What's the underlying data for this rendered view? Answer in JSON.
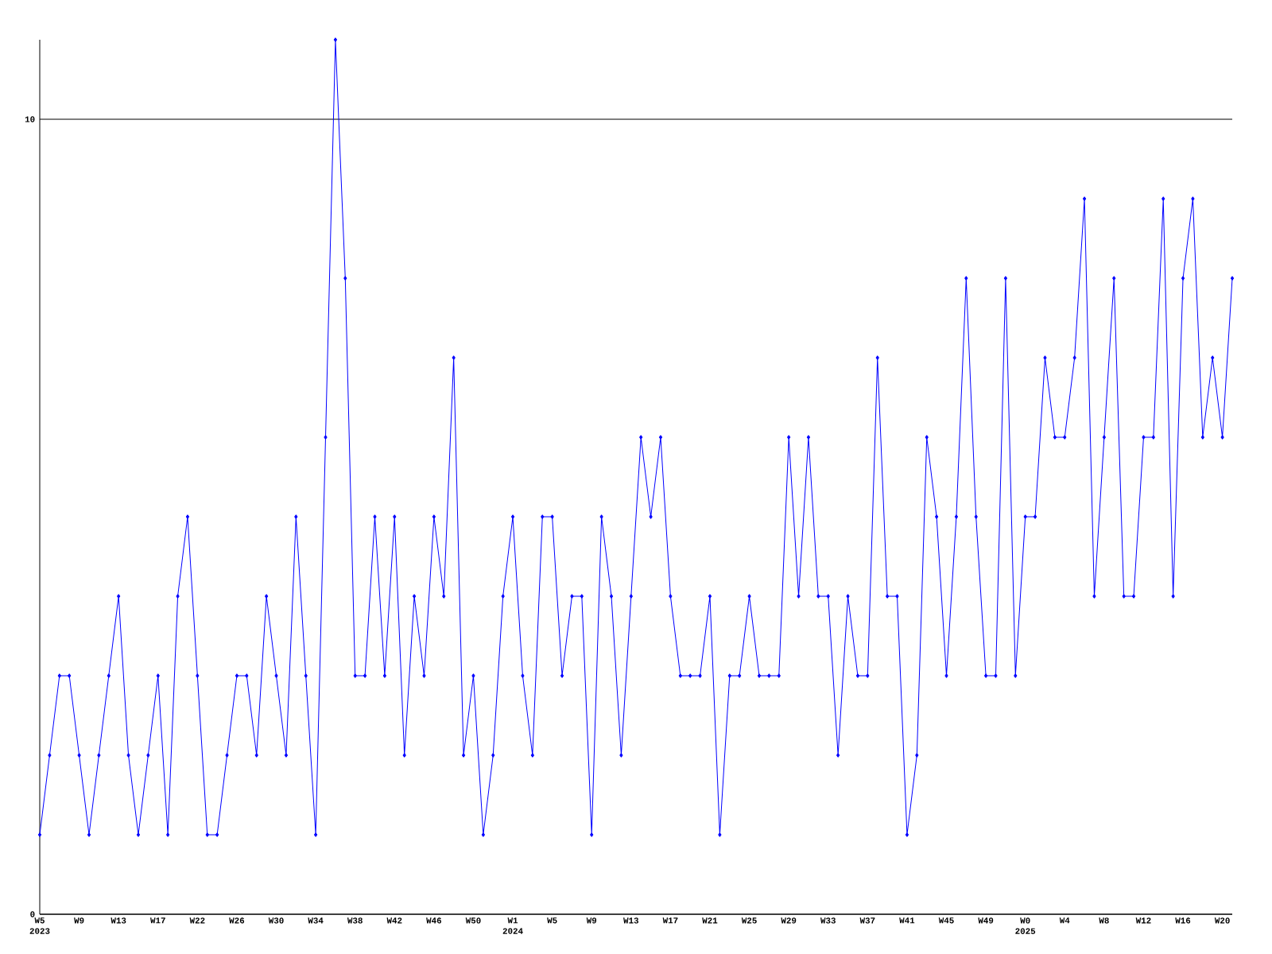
{
  "chart_data": {
    "type": "line",
    "categories": [
      "W5 2023",
      null,
      null,
      null,
      "W9",
      null,
      null,
      null,
      "W13",
      null,
      null,
      null,
      "W17",
      null,
      null,
      null,
      "W22",
      null,
      null,
      null,
      "W26",
      null,
      null,
      null,
      "W30",
      null,
      null,
      null,
      "W34",
      null,
      null,
      null,
      "W38",
      null,
      null,
      null,
      "W42",
      null,
      null,
      null,
      "W46",
      null,
      null,
      null,
      "W50",
      null,
      null,
      null,
      "W1 2024",
      null,
      null,
      null,
      "W5",
      null,
      null,
      null,
      "W9",
      null,
      null,
      null,
      "W13",
      null,
      null,
      null,
      "W17",
      null,
      null,
      null,
      "W21",
      null,
      null,
      null,
      "W25",
      null,
      null,
      null,
      "W29",
      null,
      null,
      null,
      "W33",
      null,
      null,
      null,
      "W37",
      null,
      null,
      null,
      "W41",
      null,
      null,
      null,
      "W45",
      null,
      null,
      null,
      "W49",
      null,
      null,
      null,
      "W0 2025",
      null,
      null,
      null,
      "W4",
      null,
      null,
      null,
      "W8",
      null,
      null,
      null,
      "W12",
      null,
      null,
      null,
      "W16",
      null,
      null,
      null,
      "W20",
      null
    ],
    "series": [
      {
        "color": "#0000ff",
        "values": [
          1,
          2,
          3,
          3,
          2,
          1,
          2,
          3,
          4,
          2,
          1,
          2,
          3,
          1,
          4,
          5,
          3,
          1,
          1,
          2,
          3,
          3,
          2,
          4,
          3,
          2,
          5,
          3,
          1,
          6,
          11,
          8,
          3,
          3,
          5,
          3,
          5,
          2,
          4,
          3,
          5,
          4,
          7,
          2,
          3,
          1,
          2,
          4,
          5,
          3,
          2,
          5,
          5,
          3,
          4,
          4,
          1,
          5,
          4,
          2,
          4,
          6,
          5,
          6,
          4,
          3,
          3,
          3,
          4,
          1,
          3,
          3,
          4,
          3,
          3,
          3,
          6,
          4,
          6,
          4,
          4,
          2,
          4,
          3,
          3,
          7,
          4,
          4,
          1,
          2,
          6,
          5,
          3,
          5,
          8,
          5,
          3,
          3,
          8,
          3,
          5,
          5,
          7,
          6,
          6,
          7,
          9,
          4,
          6,
          8,
          4,
          4,
          6,
          6,
          9,
          4,
          8,
          9,
          6,
          7,
          6,
          8
        ]
      }
    ],
    "ylim": [
      0,
      11
    ],
    "yticks": [
      0,
      10
    ],
    "grid": "y",
    "marker": "diamond",
    "line_style": "solid"
  }
}
